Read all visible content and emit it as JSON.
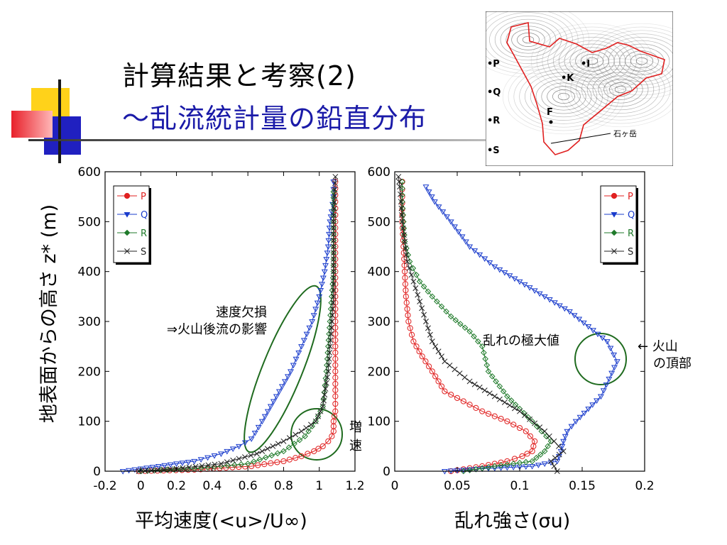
{
  "slide": {
    "title_line1": "計算結果と考察(2)",
    "title_line2": "〜乱流統計量の鉛直分布",
    "title_color": "#000000",
    "subtitle_color": "#1a1aa8"
  },
  "axes": {
    "y_label": "地表面からの高さ z* (m)",
    "x_label_left": "平均速度(<u>/U∞)",
    "x_label_right": "乱れ強さ(σu)"
  },
  "map": {
    "points": [
      {
        "label": "•P"
      },
      {
        "label": "•Q"
      },
      {
        "label": "•R"
      },
      {
        "label": "•S"
      },
      {
        "label": "•I"
      },
      {
        "label": "•K"
      },
      {
        "label": "F"
      }
    ],
    "site_label": "石ヶ岳",
    "boundary_color": "#e02020"
  },
  "chart_data": [
    {
      "type": "line",
      "title": "",
      "xlabel": "平均速度(<u>/U∞)",
      "ylabel": "地表面からの高さ z* (m)",
      "xlim": [
        -0.2,
        1.2
      ],
      "ylim": [
        0,
        600
      ],
      "x_ticks": [
        "-0.2",
        "0",
        "0.2",
        "0.4",
        "0.6",
        "0.8",
        "1",
        "1.2"
      ],
      "y_ticks": [
        "0",
        "100",
        "200",
        "300",
        "400",
        "500",
        "600"
      ],
      "legend": "top-left",
      "series": [
        {
          "name": "P",
          "color": "#e02020",
          "marker": "circle",
          "x": [
            -0.01,
            0.3,
            0.62,
            0.8,
            0.9,
            0.97,
            1.02,
            1.05,
            1.07,
            1.08,
            1.08,
            1.09,
            1.09,
            1.09,
            1.09,
            1.09,
            1.09,
            1.09,
            1.09,
            1.09,
            1.09
          ],
          "y": [
            0,
            3,
            10,
            20,
            30,
            40,
            50,
            60,
            70,
            80,
            100,
            120,
            150,
            200,
            250,
            300,
            350,
            400,
            450,
            500,
            580
          ]
        },
        {
          "name": "Q",
          "color": "#1a3ccc",
          "marker": "triangle-down",
          "x": [
            -0.1,
            0.1,
            0.3,
            0.45,
            0.55,
            0.62,
            0.68,
            0.76,
            0.84,
            0.9,
            0.96,
            1.0,
            1.03,
            1.05,
            1.06,
            1.07,
            1.08,
            1.08
          ],
          "y": [
            0,
            10,
            20,
            35,
            50,
            65,
            100,
            150,
            200,
            250,
            300,
            350,
            400,
            450,
            500,
            520,
            550,
            580
          ]
        },
        {
          "name": "R",
          "color": "#1f7a2a",
          "marker": "diamond",
          "x": [
            0,
            0.3,
            0.6,
            0.8,
            0.92,
            0.98,
            1.02,
            1.04,
            1.05,
            1.06,
            1.07,
            1.08,
            1.08,
            1.08,
            1.08
          ],
          "y": [
            0,
            5,
            15,
            40,
            70,
            100,
            130,
            200,
            250,
            300,
            350,
            400,
            450,
            500,
            560
          ]
        },
        {
          "name": "S",
          "color": "#222222",
          "marker": "x",
          "x": [
            -0.01,
            0.2,
            0.45,
            0.65,
            0.8,
            0.9,
            0.98,
            1.02,
            1.05,
            1.06,
            1.07,
            1.08,
            1.08,
            1.08,
            1.09
          ],
          "y": [
            0,
            5,
            15,
            35,
            60,
            80,
            100,
            130,
            200,
            250,
            300,
            350,
            400,
            500,
            590
          ]
        }
      ],
      "annotations": [
        {
          "text_lines": [
            "速度欠損",
            "⇒火山後流の影響"
          ]
        },
        {
          "text_lines": [
            "増",
            "速"
          ]
        }
      ]
    },
    {
      "type": "line",
      "title": "",
      "xlabel": "乱れ強さ(σu)",
      "ylabel": "",
      "xlim": [
        0,
        0.2
      ],
      "ylim": [
        0,
        600
      ],
      "x_ticks": [
        "0",
        "0.05",
        "0.1",
        "0.15",
        "0.2"
      ],
      "y_ticks": [
        "0",
        "100",
        "200",
        "300",
        "400",
        "500",
        "600"
      ],
      "legend": "top-right",
      "series": [
        {
          "name": "P",
          "color": "#e02020",
          "marker": "circle",
          "x": [
            0.045,
            0.07,
            0.09,
            0.102,
            0.11,
            0.112,
            0.105,
            0.09,
            0.07,
            0.055,
            0.04,
            0.03,
            0.022,
            0.015,
            0.011,
            0.009,
            0.008,
            0.007,
            0.006,
            0.006,
            0.006
          ],
          "y": [
            0,
            10,
            20,
            30,
            40,
            60,
            80,
            100,
            120,
            140,
            160,
            200,
            230,
            260,
            300,
            350,
            400,
            450,
            500,
            550,
            580
          ]
        },
        {
          "name": "Q",
          "color": "#1a3ccc",
          "marker": "triangle-down",
          "x": [
            0.04,
            0.07,
            0.11,
            0.13,
            0.133,
            0.135,
            0.138,
            0.145,
            0.165,
            0.178,
            0.17,
            0.155,
            0.14,
            0.12,
            0.1,
            0.08,
            0.06,
            0.045,
            0.032,
            0.025
          ],
          "y": [
            0,
            5,
            10,
            20,
            40,
            60,
            80,
            100,
            150,
            220,
            260,
            290,
            320,
            350,
            380,
            410,
            450,
            500,
            540,
            570
          ]
        },
        {
          "name": "R",
          "color": "#1f7a2a",
          "marker": "diamond",
          "x": [
            0.055,
            0.08,
            0.11,
            0.12,
            0.125,
            0.11,
            0.09,
            0.075,
            0.07,
            0.06,
            0.045,
            0.03,
            0.02,
            0.012,
            0.008,
            0.007,
            0.006,
            0.006
          ],
          "y": [
            0,
            10,
            20,
            40,
            60,
            100,
            150,
            200,
            250,
            280,
            310,
            350,
            380,
            420,
            460,
            500,
            540,
            580
          ]
        },
        {
          "name": "S",
          "color": "#222222",
          "marker": "x",
          "x": [
            0.13,
            0.125,
            0.135,
            0.12,
            0.1,
            0.08,
            0.06,
            0.04,
            0.03,
            0.025,
            0.02,
            0.015,
            0.01,
            0.008,
            0.006,
            0.005,
            0.004,
            0.003
          ],
          "y": [
            0,
            20,
            40,
            80,
            120,
            150,
            180,
            220,
            260,
            300,
            340,
            380,
            420,
            460,
            500,
            540,
            570,
            590
          ]
        }
      ],
      "annotations": [
        {
          "text_lines": [
            "乱れの極大値"
          ]
        },
        {
          "text_lines": [
            "← 火山",
            "の頂部"
          ]
        }
      ]
    }
  ]
}
